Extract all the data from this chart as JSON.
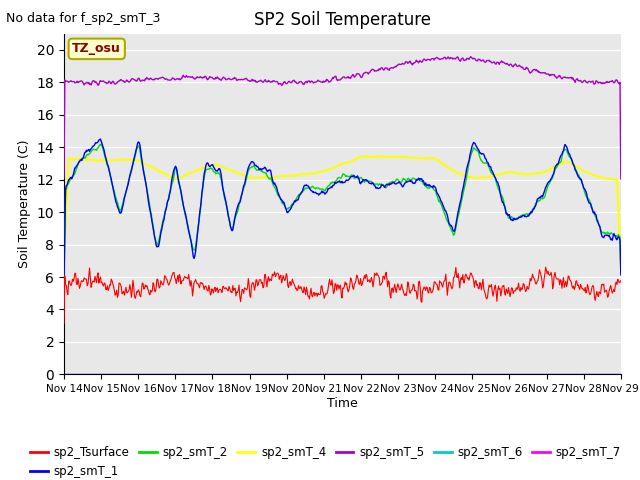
{
  "title": "SP2 Soil Temperature",
  "no_data_text": "No data for f_sp2_smT_3",
  "xlabel": "Time",
  "ylabel": "Soil Temperature (C)",
  "ylim": [
    0,
    21
  ],
  "yticks": [
    0,
    2,
    4,
    6,
    8,
    10,
    12,
    14,
    16,
    18,
    20
  ],
  "xtick_labels": [
    "Nov 14",
    "Nov 15",
    "Nov 16",
    "Nov 17",
    "Nov 18",
    "Nov 19",
    "Nov 20",
    "Nov 21",
    "Nov 22",
    "Nov 23",
    "Nov 24",
    "Nov 25",
    "Nov 26",
    "Nov 27",
    "Nov 28",
    "Nov 29"
  ],
  "bg_color": "#e8e8e8",
  "fig_color": "#ffffff",
  "annotation_text": "TZ_osu",
  "series": {
    "sp2_Tsurface": {
      "color": "#ff0000",
      "lw": 0.8
    },
    "sp2_smT_1": {
      "color": "#0000ff",
      "lw": 1.0
    },
    "sp2_smT_2": {
      "color": "#00dd00",
      "lw": 1.0
    },
    "sp2_smT_4": {
      "color": "#ffff00",
      "lw": 1.5
    },
    "sp2_smT_5": {
      "color": "#aa00cc",
      "lw": 1.0
    },
    "sp2_smT_6": {
      "color": "#00cccc",
      "lw": 1.0
    },
    "sp2_smT_7": {
      "color": "#ff00ff",
      "lw": 1.0
    }
  }
}
